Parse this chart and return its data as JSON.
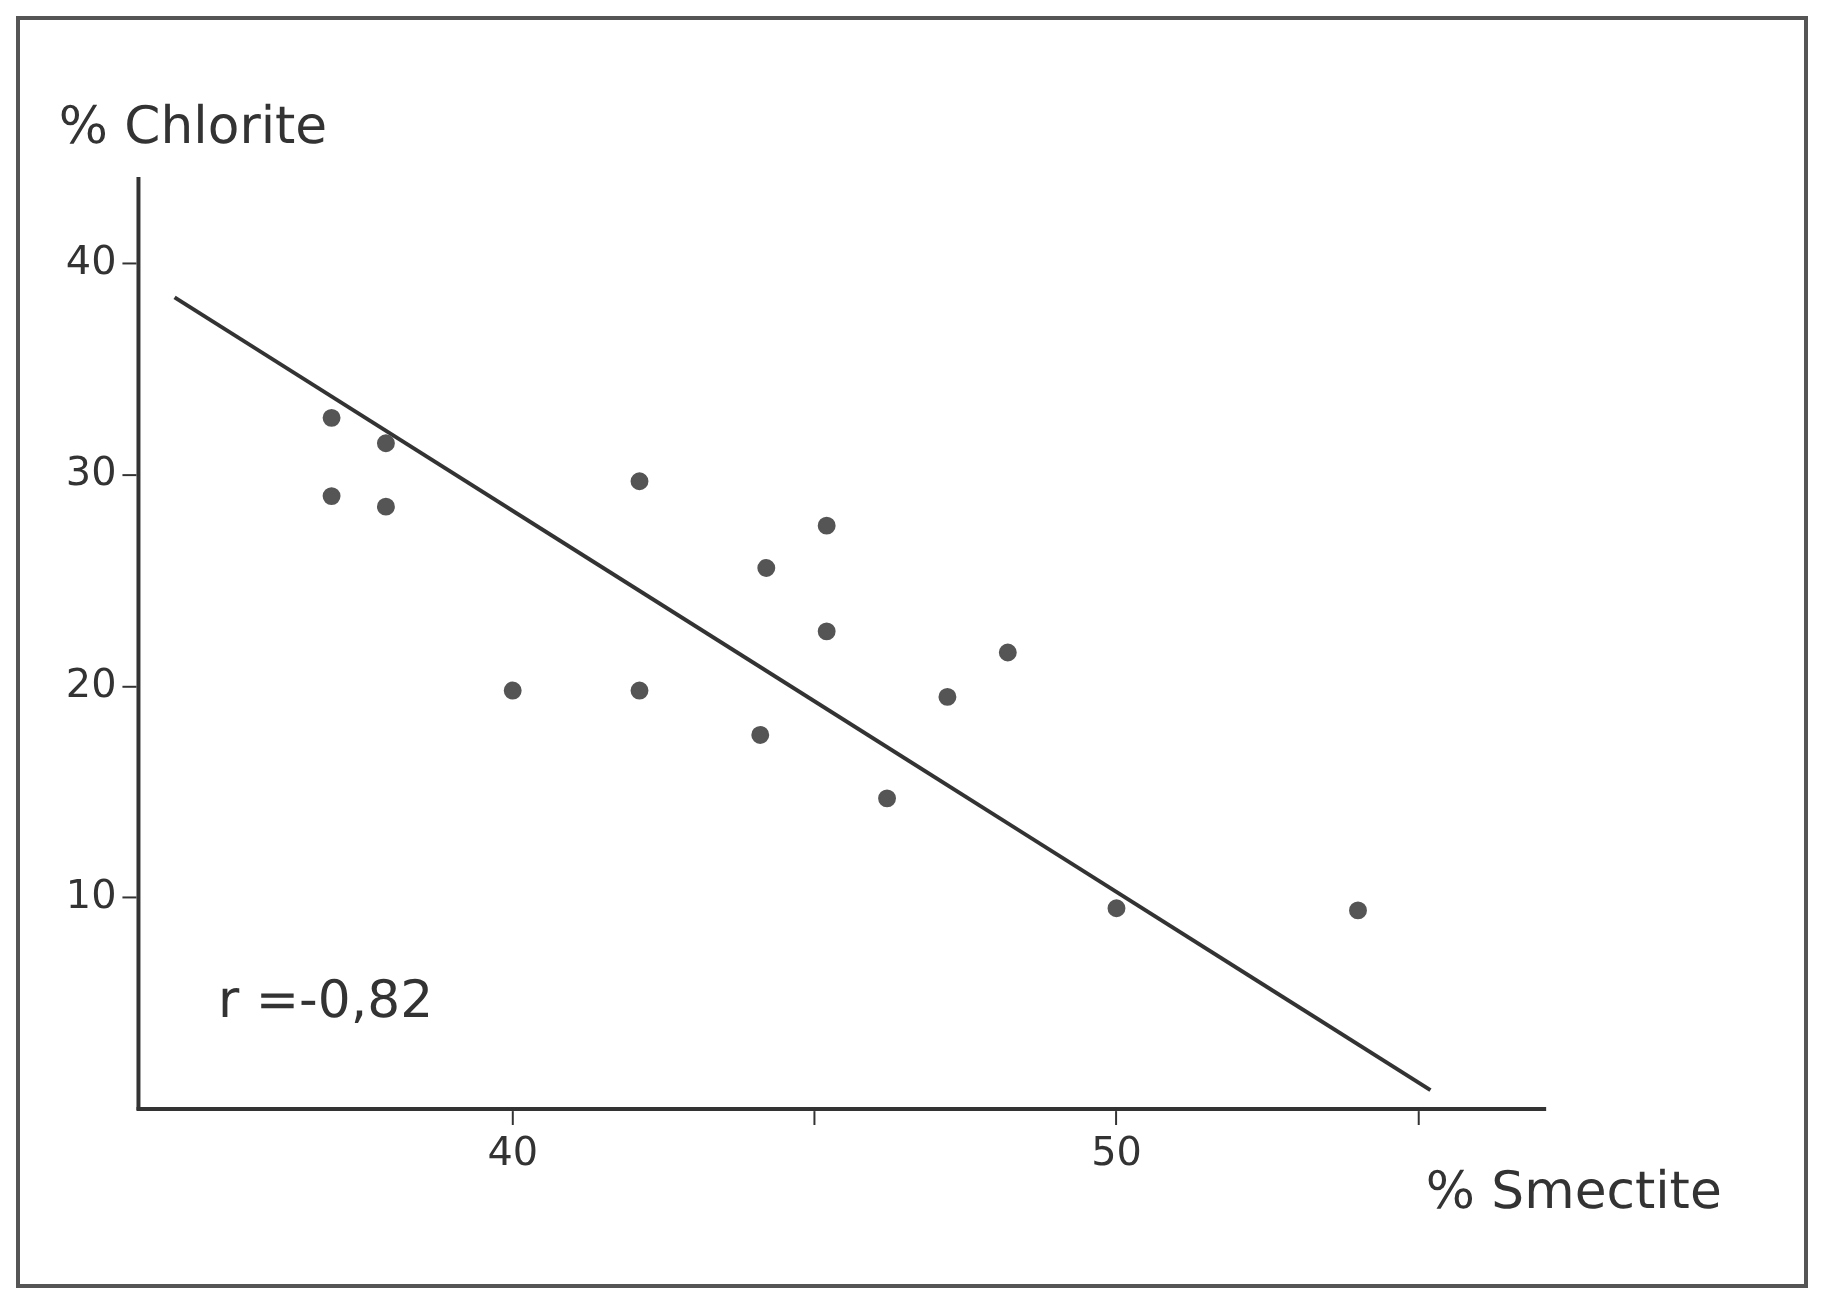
{
  "chart_data": {
    "type": "scatter",
    "xlabel": "% Smectite",
    "ylabel": "% Chlorite",
    "xlim": [
      33.8,
      57.1
    ],
    "ylim": [
      0,
      44
    ],
    "xticks": [
      {
        "value": 40,
        "label": "40"
      },
      {
        "value": 45,
        "label": null
      },
      {
        "value": 50,
        "label": "50"
      },
      {
        "value": 55,
        "label": null
      }
    ],
    "yticks": [
      10,
      20,
      30,
      40
    ],
    "grid": false,
    "legend": false,
    "marker": "circle",
    "series": [
      {
        "type": "scatter",
        "color": "#555555",
        "x": [
          37.0,
          37.0,
          37.9,
          37.9,
          40.0,
          42.1,
          42.1,
          44.2,
          44.1,
          45.2,
          45.2,
          46.2,
          47.2,
          48.2,
          50.0,
          54.0
        ],
        "values": [
          32.7,
          29.0,
          31.5,
          28.5,
          19.8,
          29.7,
          19.8,
          25.6,
          17.7,
          22.6,
          27.6,
          14.7,
          19.5,
          21.6,
          9.5,
          9.4
        ]
      },
      {
        "type": "line",
        "color": "#333333",
        "line_style": "solid",
        "marker": "none",
        "x": [
          34.4,
          55.2
        ],
        "values": [
          38.4,
          0.9
        ]
      }
    ],
    "annotations": [
      "r =-0,82"
    ]
  }
}
